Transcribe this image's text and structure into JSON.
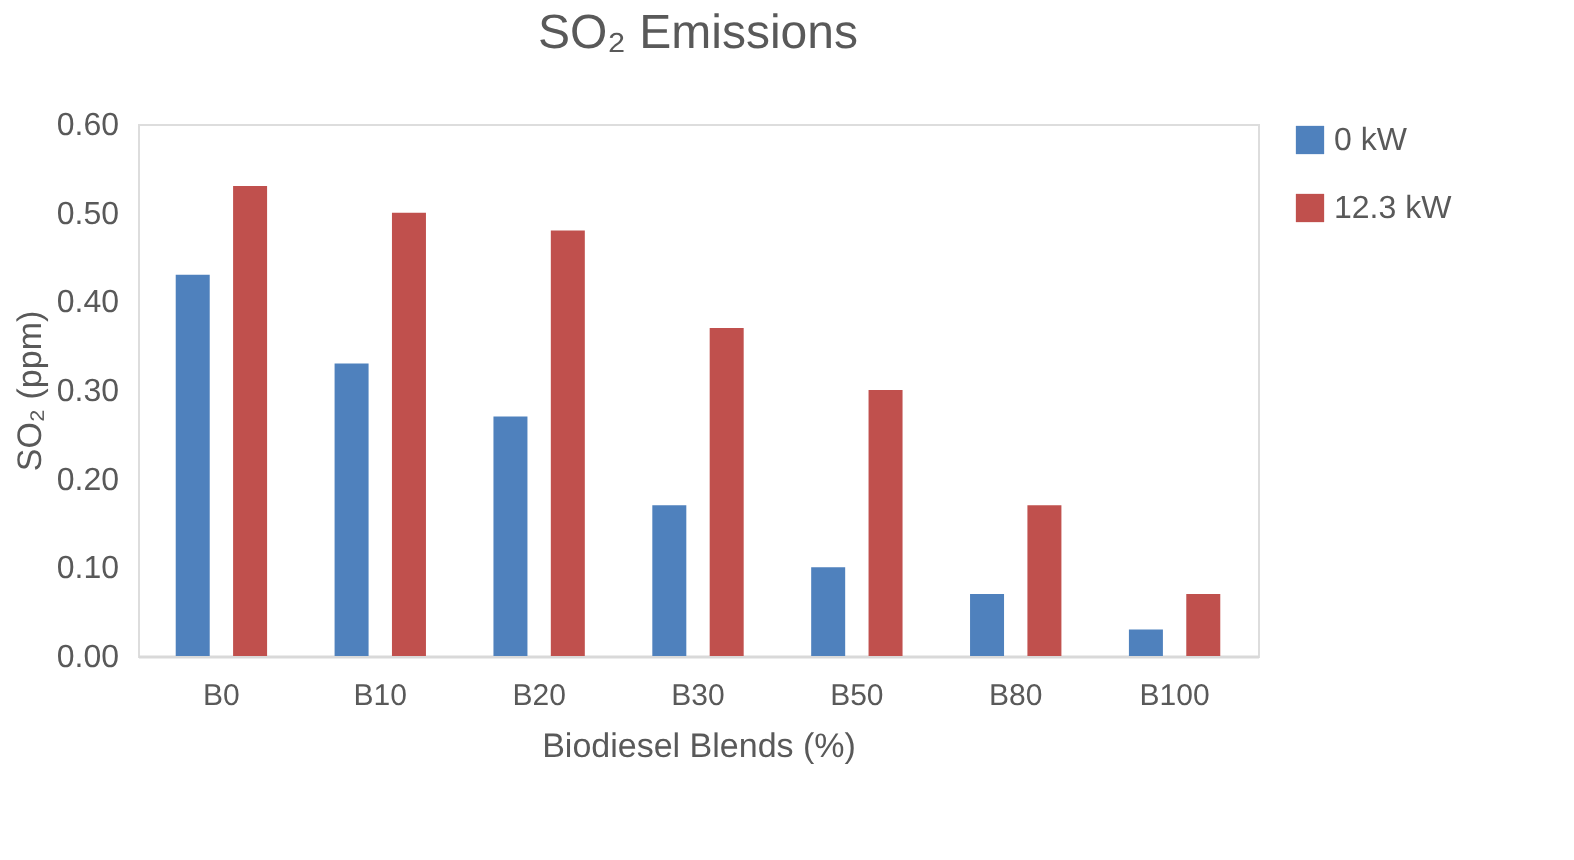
{
  "chart_data": {
    "type": "bar",
    "title": "SO₂ Emissions",
    "xlabel": "Biodiesel Blends (%)",
    "ylabel": "SO₂ (ppm)",
    "categories": [
      "B0",
      "B10",
      "B20",
      "B30",
      "B50",
      "B80",
      "B100"
    ],
    "series": [
      {
        "name": "0 kW",
        "color": "#4f81bd",
        "values": [
          0.43,
          0.33,
          0.27,
          0.17,
          0.1,
          0.07,
          0.03
        ]
      },
      {
        "name": "12.3 kW",
        "color": "#c0504d",
        "values": [
          0.53,
          0.5,
          0.48,
          0.37,
          0.3,
          0.17,
          0.07
        ]
      }
    ],
    "ylim": [
      0,
      0.6
    ],
    "yticks": [
      {
        "value": 0,
        "label": "0.00"
      },
      {
        "value": 0.1,
        "label": "0.10"
      },
      {
        "value": 0.2,
        "label": "0.20"
      },
      {
        "value": 0.3,
        "label": "0.30"
      },
      {
        "value": 0.4,
        "label": "0.40"
      },
      {
        "value": 0.5,
        "label": "0.50"
      },
      {
        "value": 0.6,
        "label": "0.60"
      }
    ],
    "grid": false,
    "legend": "right"
  }
}
